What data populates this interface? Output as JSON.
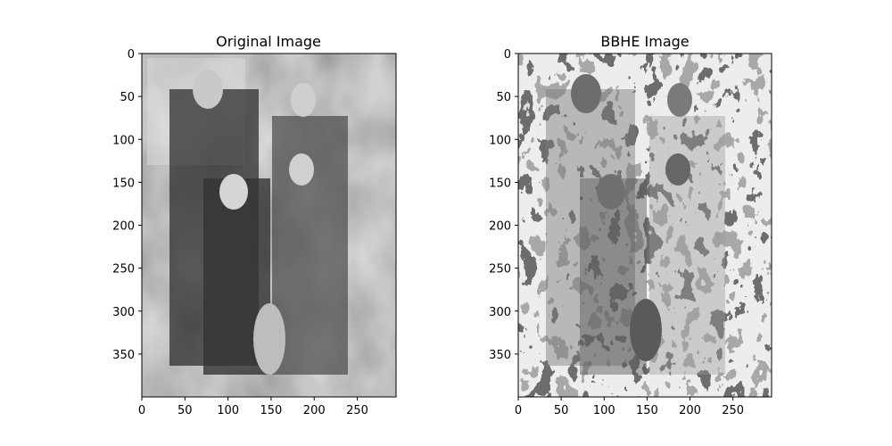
{
  "chart_data": [
    {
      "type": "image",
      "title": "Original Image",
      "content": "grayscale photograph",
      "xlim": [
        0,
        295
      ],
      "ylim": [
        400,
        0
      ],
      "xticks": [
        0,
        50,
        100,
        150,
        200,
        250
      ],
      "yticks": [
        0,
        50,
        100,
        150,
        200,
        250,
        300,
        350
      ]
    },
    {
      "type": "image",
      "title": "BBHE Image",
      "content": "histogram-equalized grayscale photograph",
      "xlim": [
        0,
        295
      ],
      "ylim": [
        400,
        0
      ],
      "xticks": [
        0,
        50,
        100,
        150,
        200,
        250
      ],
      "yticks": [
        0,
        50,
        100,
        150,
        200,
        250,
        300,
        350
      ]
    }
  ]
}
